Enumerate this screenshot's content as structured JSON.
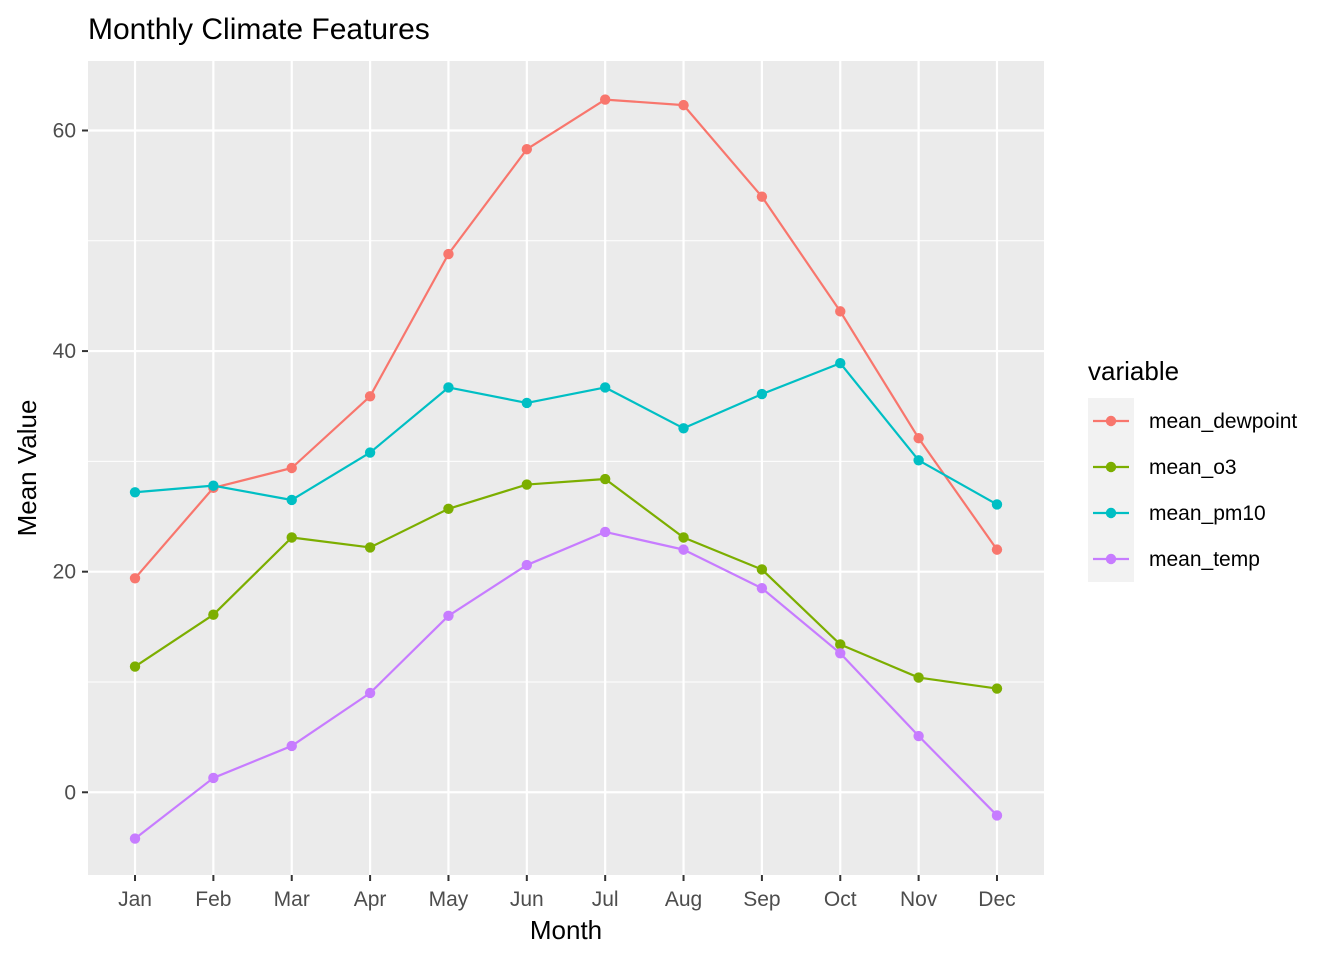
{
  "chart_data": {
    "type": "line",
    "title": "Monthly Climate Features",
    "xlabel": "Month",
    "ylabel": "Mean Value",
    "categories": [
      "Jan",
      "Feb",
      "Mar",
      "Apr",
      "May",
      "Jun",
      "Jul",
      "Aug",
      "Sep",
      "Oct",
      "Nov",
      "Dec"
    ],
    "ylim": [
      -7.5,
      66.3
    ],
    "yticks": [
      0,
      20,
      40,
      60
    ],
    "grid": true,
    "legend": {
      "title": "variable",
      "placement": "right"
    },
    "series": [
      {
        "name": "mean_dewpoint",
        "color": "#F8766D",
        "values": [
          19.4,
          27.6,
          29.4,
          35.9,
          48.8,
          58.3,
          62.8,
          62.3,
          54.0,
          43.6,
          32.1,
          22.0
        ]
      },
      {
        "name": "mean_o3",
        "color": "#7CAE00",
        "values": [
          11.4,
          16.1,
          23.1,
          22.2,
          25.7,
          27.9,
          28.4,
          23.1,
          20.2,
          13.4,
          10.4,
          9.4
        ]
      },
      {
        "name": "mean_pm10",
        "color": "#00BFC4",
        "values": [
          27.2,
          27.8,
          26.5,
          30.8,
          36.7,
          35.3,
          36.7,
          33.0,
          36.1,
          38.9,
          30.1,
          26.1
        ]
      },
      {
        "name": "mean_temp",
        "color": "#C77CFF",
        "values": [
          -4.2,
          1.3,
          4.2,
          9.0,
          16.0,
          20.6,
          23.6,
          22.0,
          18.5,
          12.6,
          5.1,
          -2.1
        ]
      }
    ]
  }
}
